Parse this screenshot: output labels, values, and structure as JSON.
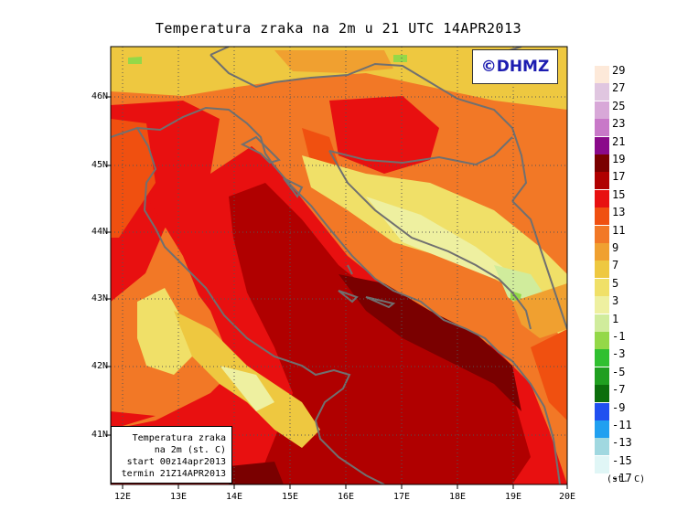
{
  "title": "Temperatura zraka na 2m u 21 UTC 14APR2013",
  "logo": "©DHMZ",
  "info": {
    "line1": "Temperatura zraka",
    "line2": "na 2m (st. C)",
    "line3": "start 00z14apr2013",
    "line4": "termin 21Z14APR2013"
  },
  "latitude_labels": [
    "46N",
    "45N",
    "44N",
    "43N",
    "42N",
    "41N"
  ],
  "longitude_labels": [
    "12E",
    "13E",
    "14E",
    "15E",
    "16E",
    "17E",
    "18E",
    "19E",
    "20E"
  ],
  "legend": {
    "items": [
      {
        "label": "29",
        "color": "#fde9d9"
      },
      {
        "label": "27",
        "color": "#e0c6e0"
      },
      {
        "label": "25",
        "color": "#d8a8d8"
      },
      {
        "label": "23",
        "color": "#c878c8"
      },
      {
        "label": "21",
        "color": "#8a0a8a"
      },
      {
        "label": "19",
        "color": "#7a0000"
      },
      {
        "label": "17",
        "color": "#b00000"
      },
      {
        "label": "15",
        "color": "#e81010"
      },
      {
        "label": "13",
        "color": "#f05010"
      },
      {
        "label": "11",
        "color": "#f27826"
      },
      {
        "label": "9",
        "color": "#f0a030"
      },
      {
        "label": "7",
        "color": "#eec840"
      },
      {
        "label": "5",
        "color": "#f0e068"
      },
      {
        "label": "3",
        "color": "#eef0a0"
      },
      {
        "label": "1",
        "color": "#d0ec9c"
      },
      {
        "label": "-1",
        "color": "#94d848"
      },
      {
        "label": "-3",
        "color": "#30c030"
      },
      {
        "label": "-5",
        "color": "#1f9f1f"
      },
      {
        "label": "-7",
        "color": "#0b6e0b"
      },
      {
        "label": "-9",
        "color": "#2050f0"
      },
      {
        "label": "-11",
        "color": "#20a0f0"
      },
      {
        "label": "-13",
        "color": "#a0d8e0"
      },
      {
        "label": "-15",
        "color": "#e0f6f6"
      },
      {
        "label": "-17",
        "color": "#ffffff"
      }
    ],
    "units": "(st. C)"
  }
}
